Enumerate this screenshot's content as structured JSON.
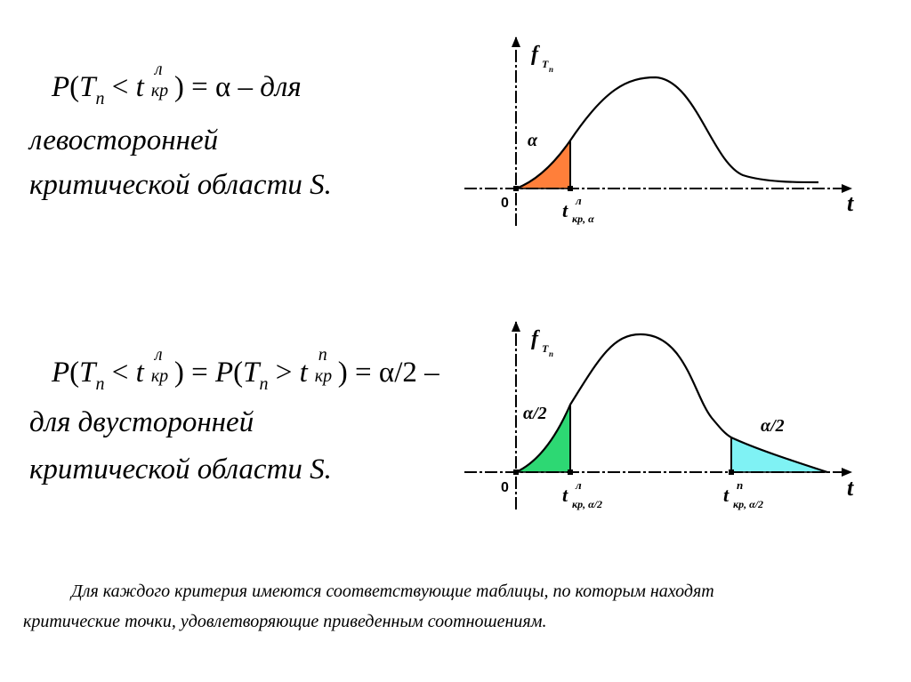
{
  "slide": {
    "formula1": {
      "P": "P",
      "open": "(",
      "T": "T",
      "T_sub": "n",
      "lt": "<",
      "t": "t",
      "t_sup": "л",
      "t_sub": "кр",
      "close": ")",
      "eq": "=",
      "alpha": "α",
      "dash": "–",
      "word": "для"
    },
    "text1_line1": "левосторонней",
    "text1_line2": "критической области S.",
    "formula2": {
      "P": "P",
      "open": "(",
      "T": "T",
      "T_sub": "n",
      "lt": "<",
      "t1": "t",
      "t1_sup": "л",
      "t1_sub": "кр",
      "close1": ")",
      "eq1": "=",
      "P2": "P",
      "open2": "(",
      "T2": "T",
      "T2_sub": "n",
      "gt": ">",
      "t2": "t",
      "t2_sup": "n",
      "t2_sub": "кр",
      "close2": ")",
      "eq2": "=",
      "rhs": "α/2 –"
    },
    "text2_line1": "для двусторонней",
    "text2_line2": "критической области S.",
    "note_line1": "Для каждого критерия имеются соответствующие таблицы, по которым находят",
    "note_line2": "критические точки, удовлетворяющие приведенным соотношениям."
  },
  "graph1": {
    "y_label": "f",
    "y_label_sub": "T",
    "y_label_subsub": "n",
    "x_label": "t",
    "origin": "0",
    "region_label": "α",
    "crit_t": "t",
    "crit_sup": "л",
    "crit_sub": "кр, α",
    "region_color": "#ff7f3a"
  },
  "graph2": {
    "y_label": "f",
    "y_label_sub": "T",
    "y_label_subsub": "n",
    "x_label": "t",
    "origin": "0",
    "left_region_label": "α/2",
    "right_region_label": "α/2",
    "left_crit_t": "t",
    "left_crit_sup": "л",
    "left_crit_sub": "кр, α/2",
    "right_crit_t": "t",
    "right_crit_sup": "n",
    "right_crit_sub": "кр, α/2",
    "left_color": "#2dd873",
    "right_color": "#7ff2f4"
  }
}
